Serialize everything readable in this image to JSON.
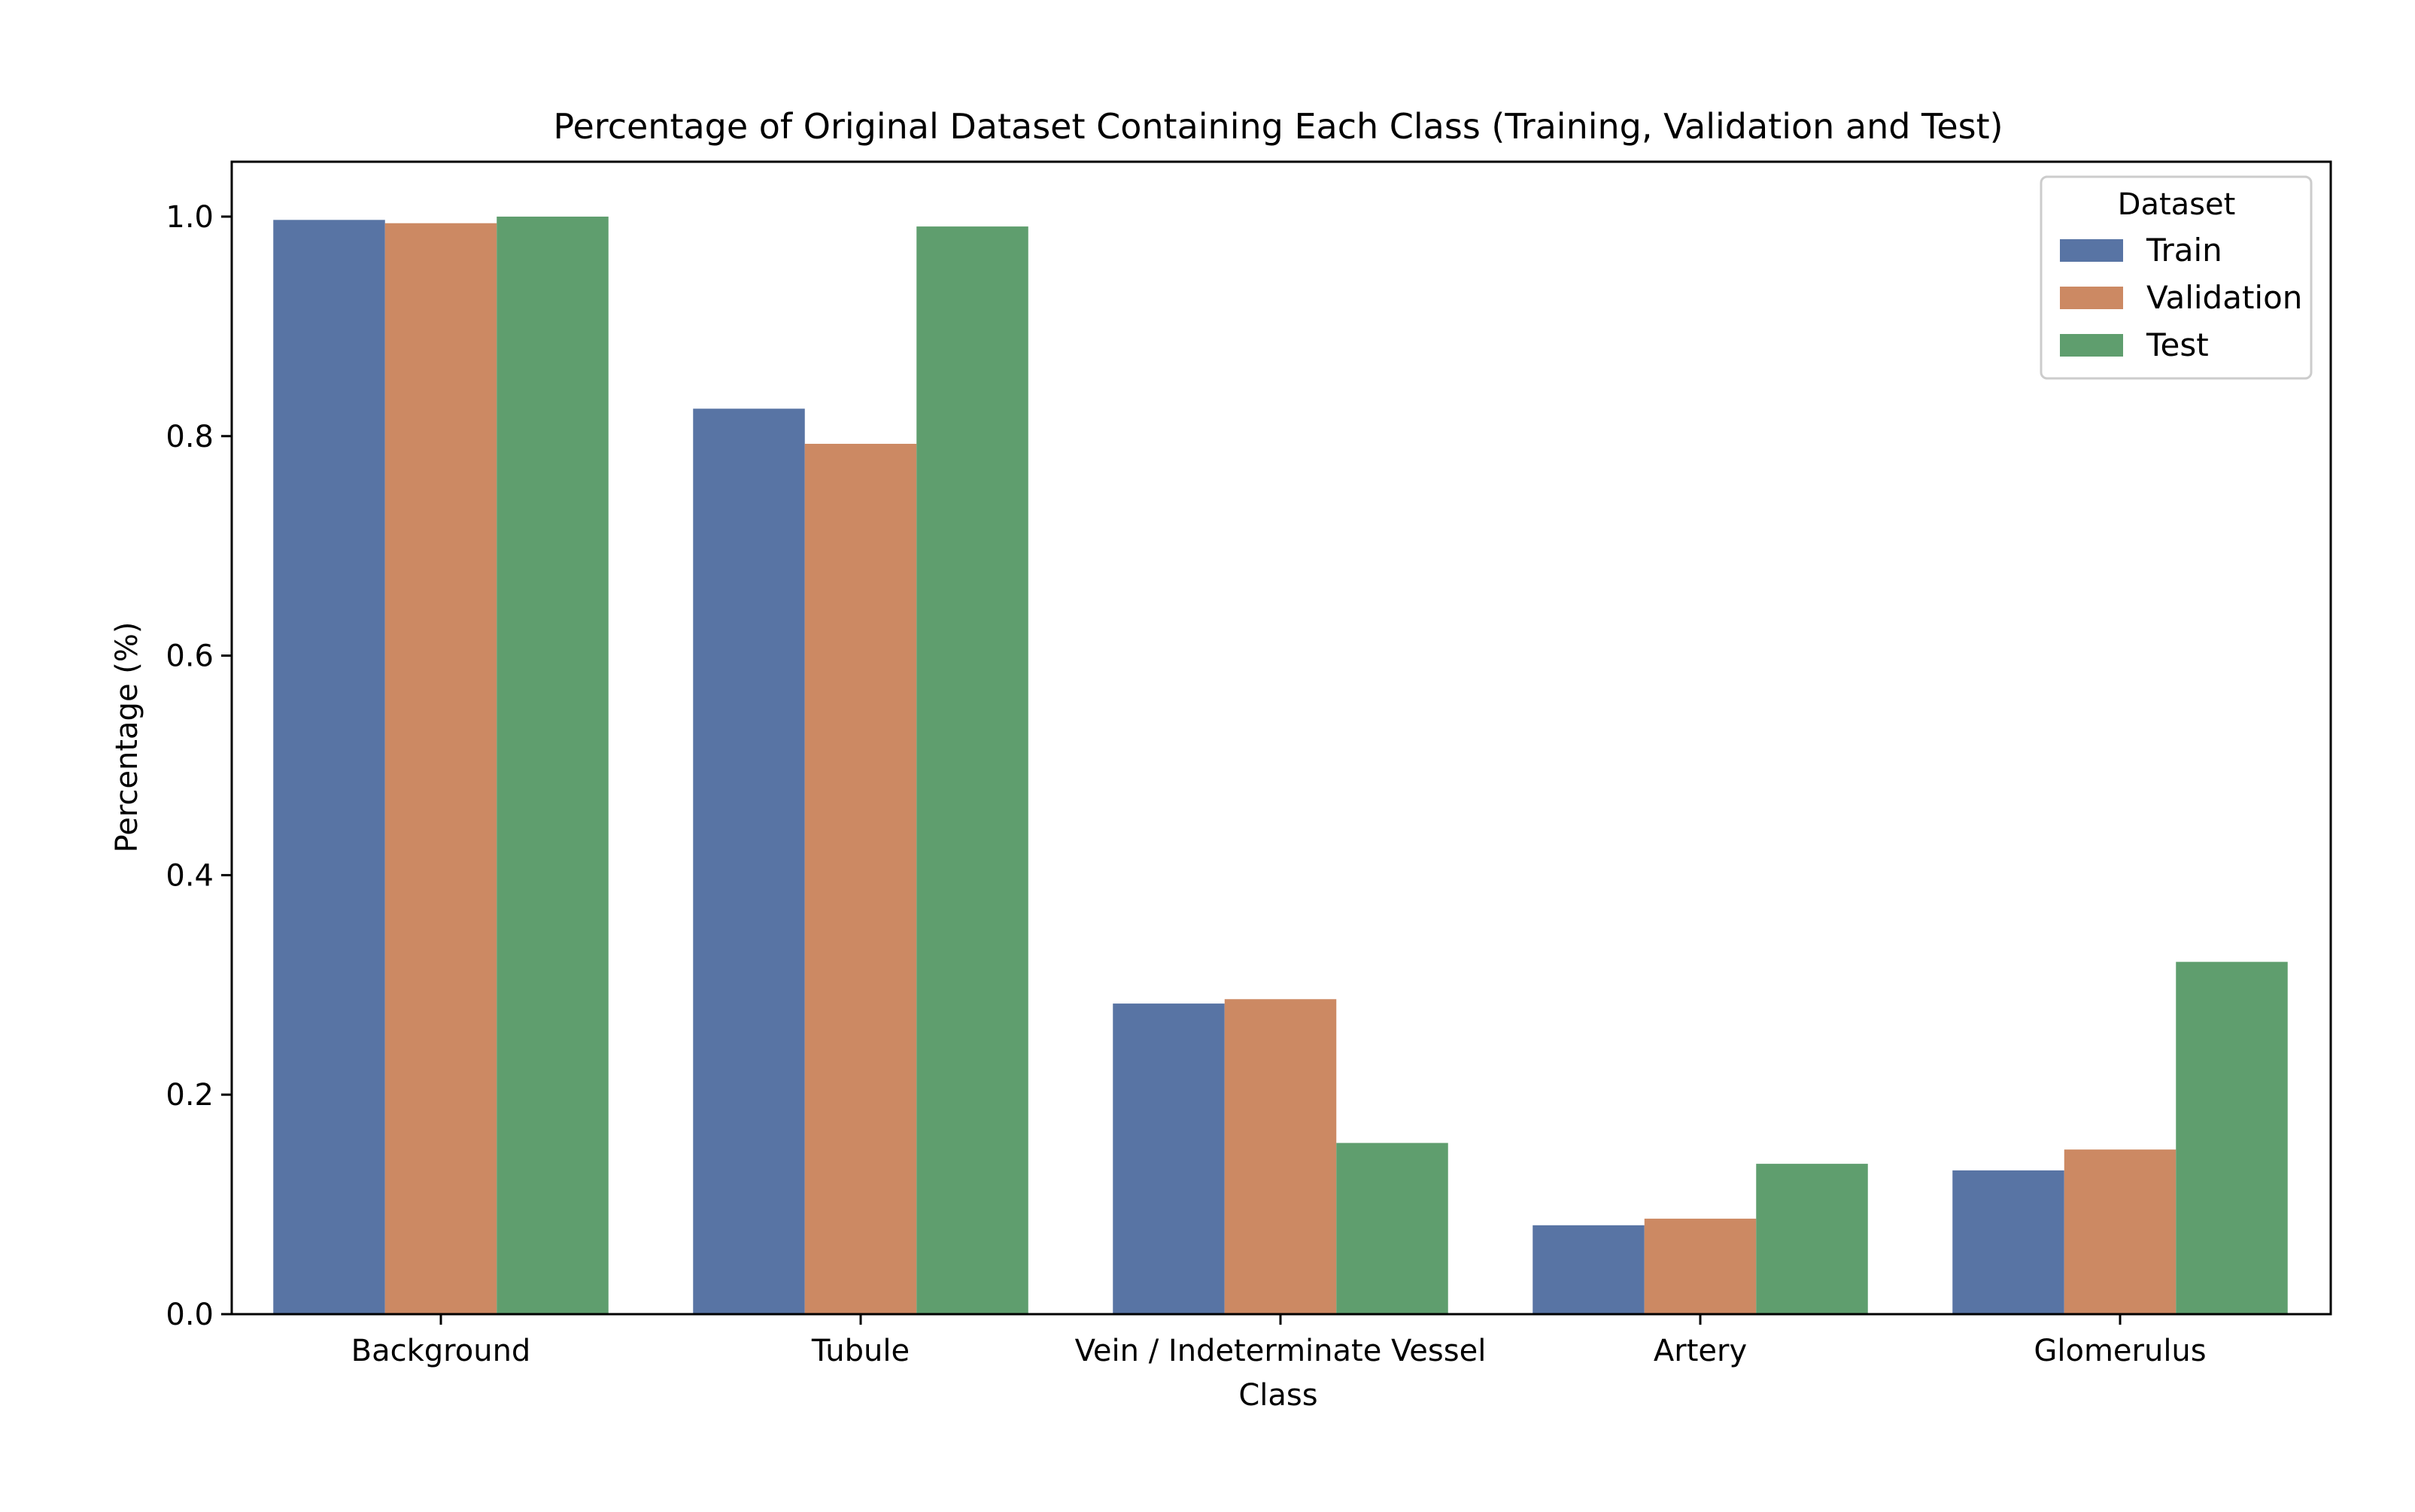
{
  "chart_data": {
    "type": "bar",
    "title": "Percentage of Original Dataset Containing Each Class (Training, Validation and Test)",
    "xlabel": "Class",
    "ylabel": "Percentage (%)",
    "categories": [
      "Background",
      "Tubule",
      "Vein / Indeterminate Vessel",
      "Artery",
      "Glomerulus"
    ],
    "series": [
      {
        "name": "Train",
        "color": "#5874a4",
        "values": [
          0.997,
          0.825,
          0.283,
          0.081,
          0.131
        ]
      },
      {
        "name": "Validation",
        "color": "#cc8963",
        "values": [
          0.994,
          0.793,
          0.287,
          0.087,
          0.15
        ]
      },
      {
        "name": "Test",
        "color": "#5f9e6e",
        "values": [
          1.0,
          0.991,
          0.156,
          0.137,
          0.321
        ]
      }
    ],
    "ylim": [
      0,
      1.05
    ],
    "yticks": [
      0.0,
      0.2,
      0.4,
      0.6,
      0.8,
      1.0
    ],
    "ytick_labels": [
      "0.0",
      "0.2",
      "0.4",
      "0.6",
      "0.8",
      "1.0"
    ],
    "grid": false,
    "legend": {
      "title": "Dataset",
      "placement": "top-right"
    }
  }
}
